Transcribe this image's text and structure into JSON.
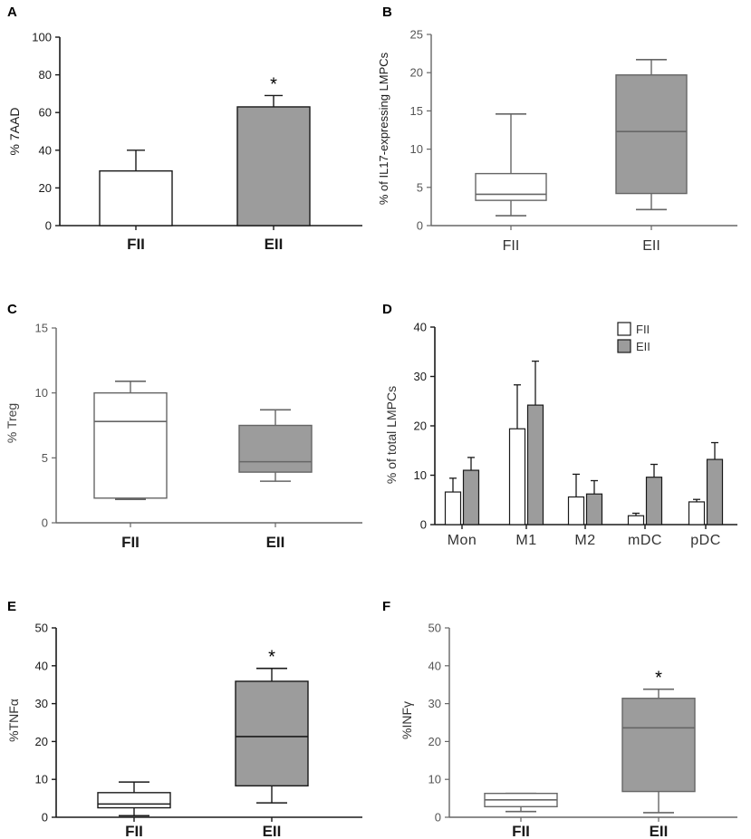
{
  "figure": {
    "colors": {
      "fii_fill": "#ffffff",
      "eii_fill": "#9c9c9c",
      "stroke": "#1a1a1a",
      "light_stroke": "#666666"
    }
  },
  "chart_data": [
    {
      "id": "A",
      "type": "bar",
      "panel_label": "A",
      "ylabel": "% 7AAD",
      "ylim": [
        0,
        100
      ],
      "yticks": [
        0,
        20,
        40,
        60,
        80,
        100
      ],
      "categories": [
        "FII",
        "EII"
      ],
      "values": [
        29,
        63
      ],
      "errors": [
        11,
        6
      ],
      "significance": [
        "",
        "*"
      ]
    },
    {
      "id": "B",
      "type": "box",
      "panel_label": "B",
      "ylabel": "% of IL17-expressing LMPCs",
      "ylim": [
        0,
        25
      ],
      "yticks": [
        0,
        5,
        10,
        15,
        20,
        25
      ],
      "categories": [
        "FII",
        "EII"
      ],
      "boxes": [
        {
          "min": 1.3,
          "q1": 3.3,
          "median": 4.1,
          "q3": 6.8,
          "max": 14.6
        },
        {
          "min": 2.1,
          "q1": 4.2,
          "median": 12.3,
          "q3": 19.7,
          "max": 21.7
        }
      ]
    },
    {
      "id": "C",
      "type": "box",
      "panel_label": "C",
      "ylabel": "% Treg",
      "ylim": [
        0,
        15
      ],
      "yticks": [
        0,
        5,
        10,
        15
      ],
      "categories": [
        "FII",
        "EII"
      ],
      "boxes": [
        {
          "min": 1.8,
          "q1": 1.9,
          "median": 7.8,
          "q3": 10.0,
          "max": 10.9
        },
        {
          "min": 3.2,
          "q1": 3.9,
          "median": 4.7,
          "q3": 7.5,
          "max": 8.7
        }
      ]
    },
    {
      "id": "D",
      "type": "bar",
      "panel_label": "D",
      "ylabel": "% of total LMPCs",
      "ylim": [
        0,
        40
      ],
      "yticks": [
        0,
        10,
        20,
        30,
        40
      ],
      "categories": [
        "Mon",
        "M1",
        "M2",
        "mDC",
        "pDC"
      ],
      "series": [
        {
          "name": "FII",
          "values": [
            6.6,
            19.4,
            5.6,
            1.8,
            4.6
          ],
          "errors": [
            2.8,
            8.9,
            4.6,
            0.5,
            0.5
          ]
        },
        {
          "name": "EII",
          "values": [
            11.0,
            24.2,
            6.2,
            9.6,
            13.2
          ],
          "errors": [
            2.6,
            8.9,
            2.7,
            2.6,
            3.4
          ]
        }
      ],
      "legend": "top-right"
    },
    {
      "id": "E",
      "type": "box",
      "panel_label": "E",
      "ylabel": "%TNFα",
      "ylim": [
        0,
        50
      ],
      "yticks": [
        0,
        10,
        20,
        30,
        40,
        50
      ],
      "categories": [
        "FII",
        "EII"
      ],
      "boxes": [
        {
          "min": 0.4,
          "q1": 2.5,
          "median": 3.5,
          "q3": 6.5,
          "max": 9.3
        },
        {
          "min": 3.8,
          "q1": 8.3,
          "median": 21.3,
          "q3": 35.9,
          "max": 39.3
        }
      ],
      "significance": [
        "",
        "*"
      ]
    },
    {
      "id": "F",
      "type": "box",
      "panel_label": "F",
      "ylabel": "%INFγ",
      "ylim": [
        0,
        50
      ],
      "yticks": [
        0,
        10,
        20,
        30,
        40,
        50
      ],
      "categories": [
        "FII",
        "EII"
      ],
      "boxes": [
        {
          "min": 1.5,
          "q1": 2.8,
          "median": 4.6,
          "q3": 6.3,
          "max": 6.3
        },
        {
          "min": 1.2,
          "q1": 6.8,
          "median": 23.6,
          "q3": 31.4,
          "max": 33.8
        }
      ],
      "significance": [
        "",
        "*"
      ]
    }
  ]
}
